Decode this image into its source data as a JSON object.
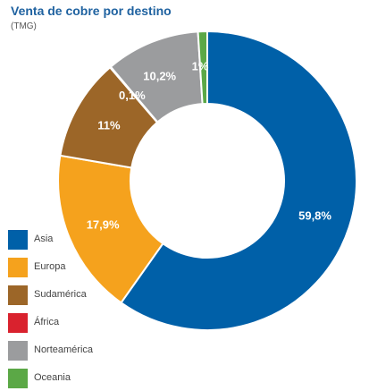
{
  "title": "Venta de cobre por destino",
  "subtitle": "(TMG)",
  "chart_data": {
    "type": "pie",
    "title": "Venta de cobre por destino",
    "subtitle": "(TMG)",
    "donut": true,
    "legend_position": "bottom-left",
    "start_at": "top, clockwise",
    "slices": [
      {
        "name": "Asia",
        "value": 59.8,
        "label": "59,8%",
        "color": "#0060a8"
      },
      {
        "name": "Europa",
        "value": 17.9,
        "label": "17,9%",
        "color": "#f5a21d"
      },
      {
        "name": "Sudamérica",
        "value": 11,
        "label": "11%",
        "color": "#9c6628"
      },
      {
        "name": "África",
        "value": 0.1,
        "label": "0,1%",
        "color": "#d9222e"
      },
      {
        "name": "Norteamérica",
        "value": 10.2,
        "label": "10,2%",
        "color": "#9b9c9e"
      },
      {
        "name": "Oceanía",
        "value": 1,
        "label": "1%",
        "color": "#5ba846"
      }
    ]
  },
  "legend": {
    "items": [
      {
        "label": "Asia",
        "color": "#0060a8"
      },
      {
        "label": "Europa",
        "color": "#f5a21d"
      },
      {
        "label": "Sudamérica",
        "color": "#9c6628"
      },
      {
        "label": "África",
        "color": "#d9222e"
      },
      {
        "label": "Norteamérica",
        "color": "#9b9c9e"
      },
      {
        "label": "Oceania",
        "color": "#5ba846"
      }
    ]
  }
}
